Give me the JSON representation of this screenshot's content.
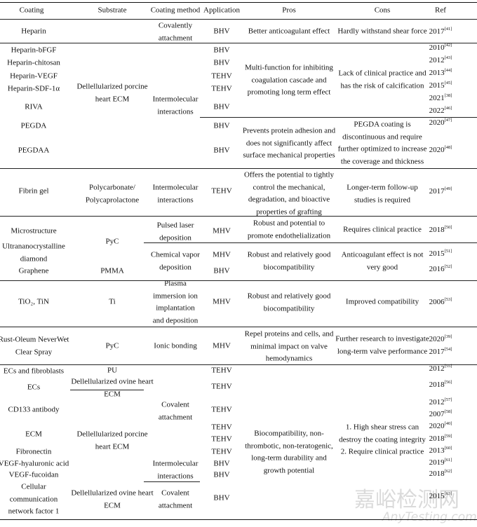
{
  "table": {
    "headers": [
      "Coating",
      "Substrate",
      "Coating method",
      "Application",
      "Pros",
      "Cons",
      "Ref"
    ],
    "cells": [
      {
        "col": "coating",
        "lines": [
          "Heparin"
        ]
      },
      {
        "col": "method",
        "lines": [
          "Covalently",
          "attachment"
        ]
      },
      {
        "col": "app",
        "lines": [
          "BHV"
        ]
      },
      {
        "col": "pros",
        "lines": [
          "Better anticoagulant effect"
        ]
      },
      {
        "col": "cons",
        "lines": [
          "Hardly withstand shear force"
        ]
      },
      {
        "col": "ref",
        "text": "2017",
        "sup": "[41]"
      },
      {
        "col": "coating",
        "lines": [
          "Heparin-bFGF"
        ]
      },
      {
        "col": "coating",
        "lines": [
          "Heparin-chitosan"
        ]
      },
      {
        "col": "coating",
        "lines": [
          "Heparin-VEGF"
        ]
      },
      {
        "col": "coating",
        "lines": [
          "Heparin-SDF-1α"
        ]
      },
      {
        "col": "coating",
        "lines": [
          "RIVA"
        ]
      },
      {
        "col": "coating",
        "lines": [
          "PEGDA"
        ]
      },
      {
        "col": "coating",
        "lines": [
          "PEGDAA"
        ]
      },
      {
        "col": "substrate",
        "lines": [
          "Dellellularized porcine",
          "heart ECM"
        ]
      },
      {
        "col": "method",
        "lines": [
          "Intermolecular",
          "interactions"
        ]
      },
      {
        "col": "app",
        "lines": [
          "BHV"
        ]
      },
      {
        "col": "app",
        "lines": [
          "BHV"
        ]
      },
      {
        "col": "app",
        "lines": [
          "TEHV"
        ]
      },
      {
        "col": "app",
        "lines": [
          "TEHV"
        ]
      },
      {
        "col": "app",
        "lines": [
          "BHV"
        ]
      },
      {
        "col": "app",
        "lines": [
          "BHV"
        ]
      },
      {
        "col": "app",
        "lines": [
          "BHV"
        ]
      },
      {
        "col": "pros",
        "lines": [
          "Multi-function for inhibiting",
          "coagulation cascade and",
          "promoting long term effect"
        ]
      },
      {
        "col": "pros",
        "lines": [
          "Prevents protein adhesion and",
          "does not significantly affect",
          "surface mechanical properties"
        ]
      },
      {
        "col": "cons",
        "lines": [
          "Lack of clinical practice and",
          "has the risk of calcification"
        ]
      },
      {
        "col": "cons",
        "lines": [
          "PEGDA coating is",
          "discontinuous and require",
          "further optimized to increase",
          "the coverage and thickness"
        ]
      },
      {
        "col": "ref",
        "text": "2010",
        "sup": "[42]"
      },
      {
        "col": "ref",
        "text": "2012",
        "sup": "[43]"
      },
      {
        "col": "ref",
        "text": "2013",
        "sup": "[44]"
      },
      {
        "col": "ref",
        "text": "2015",
        "sup": "[45]"
      },
      {
        "col": "ref",
        "text": "2021",
        "sup": "[38]"
      },
      {
        "col": "ref",
        "text": "2022",
        "sup": "[46]"
      },
      {
        "col": "ref",
        "text": "2020",
        "sup": "[47]"
      },
      {
        "col": "ref",
        "text": "2020",
        "sup": "[48]"
      },
      {
        "col": "coating",
        "lines": [
          "Fibrin gel"
        ]
      },
      {
        "col": "substrate",
        "lines": [
          "Polycarbonate/",
          "Polycaprolactone"
        ]
      },
      {
        "col": "method",
        "lines": [
          "Intermolecular",
          "interactions"
        ]
      },
      {
        "col": "app",
        "lines": [
          "TEHV"
        ]
      },
      {
        "col": "pros",
        "lines": [
          "Offers the potential to tightly",
          "control the mechanical,",
          "degradation, and bioactive",
          "properties of grafting"
        ]
      },
      {
        "col": "cons",
        "lines": [
          "Longer-term follow-up",
          "studies is required"
        ]
      },
      {
        "col": "ref",
        "text": "2017",
        "sup": "[49]"
      },
      {
        "col": "coating",
        "lines": [
          "Microstructure"
        ]
      },
      {
        "col": "coating",
        "lines": [
          "Ultrananocrystalline",
          "diamond"
        ]
      },
      {
        "col": "coating",
        "lines": [
          "Graphene"
        ]
      },
      {
        "col": "substrate",
        "lines": [
          "PyC"
        ]
      },
      {
        "col": "substrate",
        "lines": [
          "PMMA"
        ]
      },
      {
        "col": "method",
        "lines": [
          "Pulsed laser",
          "deposition"
        ]
      },
      {
        "col": "method",
        "lines": [
          "Chemical vapor",
          "deposition"
        ]
      },
      {
        "col": "app",
        "lines": [
          "MHV"
        ]
      },
      {
        "col": "app",
        "lines": [
          "MHV"
        ]
      },
      {
        "col": "app",
        "lines": [
          "BHV"
        ]
      },
      {
        "col": "pros",
        "lines": [
          "Robust and potential to",
          "promote endothelialization"
        ]
      },
      {
        "col": "pros",
        "lines": [
          "Robust and relatively good",
          "biocompatibility"
        ]
      },
      {
        "col": "cons",
        "lines": [
          "Requires clinical practice"
        ]
      },
      {
        "col": "cons",
        "lines": [
          "Anticoagulant effect is not",
          "very good"
        ]
      },
      {
        "col": "ref",
        "text": "2018",
        "sup": "[50]"
      },
      {
        "col": "ref",
        "text": "2015",
        "sup": "[51]"
      },
      {
        "col": "ref",
        "text": "2016",
        "sup": "[52]"
      },
      {
        "col": "coating",
        "lines": [
          "TiO₂, TiN"
        ]
      },
      {
        "col": "substrate",
        "lines": [
          "Ti"
        ]
      },
      {
        "col": "method",
        "lines": [
          "Plasma",
          "immersion ion",
          "implantation",
          "and deposition"
        ]
      },
      {
        "col": "app",
        "lines": [
          "MHV"
        ]
      },
      {
        "col": "pros",
        "lines": [
          "Robust and relatively good",
          "biocompatibility"
        ]
      },
      {
        "col": "cons",
        "lines": [
          "Improved compatibility"
        ]
      },
      {
        "col": "ref",
        "text": "2006",
        "sup": "[53]"
      },
      {
        "col": "coating",
        "lines": [
          "Rust-Oleum NeverWet",
          "Clear Spray"
        ]
      },
      {
        "col": "substrate",
        "lines": [
          "PyC"
        ]
      },
      {
        "col": "method",
        "lines": [
          "Ionic bonding"
        ]
      },
      {
        "col": "app",
        "lines": [
          "MHV"
        ]
      },
      {
        "col": "pros",
        "lines": [
          "Repel proteins and cells, and",
          "minimal impact on valve",
          "hemodynamics"
        ]
      },
      {
        "col": "cons",
        "lines": [
          "Further research to investigate",
          "long-term valve performance"
        ]
      },
      {
        "col": "ref",
        "text": "2020",
        "sup": "[39]"
      },
      {
        "col": "ref",
        "text": "2017",
        "sup": "[54]"
      },
      {
        "col": "coating",
        "lines": [
          "ECs and fibroblasts"
        ]
      },
      {
        "col": "coating",
        "lines": [
          "ECs"
        ]
      },
      {
        "col": "coating",
        "lines": [
          "CD133 antibody"
        ]
      },
      {
        "col": "coating",
        "lines": [
          "ECM"
        ]
      },
      {
        "col": "coating",
        "lines": [
          "Fibronectin"
        ]
      },
      {
        "col": "coating",
        "lines": [
          "VEGF-hyaluronic acid"
        ]
      },
      {
        "col": "coating",
        "lines": [
          "VEGF-fucoidan"
        ]
      },
      {
        "col": "coating",
        "lines": [
          "Cellular",
          "communication",
          "network factor 1"
        ]
      },
      {
        "col": "substrate",
        "lines": [
          "PU"
        ]
      },
      {
        "col": "substrate",
        "lines": [
          "Dellellularized ovine heart",
          "ECM"
        ]
      },
      {
        "col": "substrate",
        "lines": [
          "Dellellularized porcine",
          "heart ECM"
        ]
      },
      {
        "col": "substrate",
        "lines": [
          "Dellellularized ovine heart",
          "ECM"
        ]
      },
      {
        "col": "method",
        "lines": [
          "Covalent",
          "attachment"
        ]
      },
      {
        "col": "method",
        "lines": [
          "Intermolecular",
          "interactions"
        ]
      },
      {
        "col": "method",
        "lines": [
          "Covalent",
          "attachment"
        ]
      },
      {
        "col": "app",
        "lines": [
          "TEHV"
        ]
      },
      {
        "col": "app",
        "lines": [
          "TEHV"
        ]
      },
      {
        "col": "app",
        "lines": [
          "TEHV"
        ]
      },
      {
        "col": "app",
        "lines": [
          "TEHV"
        ]
      },
      {
        "col": "app",
        "lines": [
          "TEHV"
        ]
      },
      {
        "col": "app",
        "lines": [
          "TEHV"
        ]
      },
      {
        "col": "app",
        "lines": [
          "BHV"
        ]
      },
      {
        "col": "app",
        "lines": [
          "BHV"
        ]
      },
      {
        "col": "app",
        "lines": [
          "BHV"
        ]
      },
      {
        "col": "pros",
        "lines": [
          "Biocompatibility, non-",
          "thrombotic, non-teratogenic,",
          "long-term durability and",
          "growth potential"
        ]
      },
      {
        "col": "cons",
        "lines": [
          "1. High shear stress can",
          "destroy the coating integrity",
          "2. Require clinical practice"
        ]
      },
      {
        "col": "ref",
        "text": "2012",
        "sup": "[55]"
      },
      {
        "col": "ref",
        "text": "2018",
        "sup": "[56]"
      },
      {
        "col": "ref",
        "text": "2012",
        "sup": "[57]"
      },
      {
        "col": "ref",
        "text": "2007",
        "sup": "[58]"
      },
      {
        "col": "ref",
        "text": "2020",
        "sup": "[40]"
      },
      {
        "col": "ref",
        "text": "2018",
        "sup": "[59]"
      },
      {
        "col": "ref",
        "text": "2013",
        "sup": "[60]"
      },
      {
        "col": "ref",
        "text": "2019",
        "sup": "[61]"
      },
      {
        "col": "ref",
        "text": "2018",
        "sup": "[62]"
      },
      {
        "col": "ref",
        "text": "2015",
        "sup": "[63]"
      }
    ]
  },
  "watermark": {
    "cn": "嘉峪检测网",
    "en": "AnyTesting.com"
  }
}
